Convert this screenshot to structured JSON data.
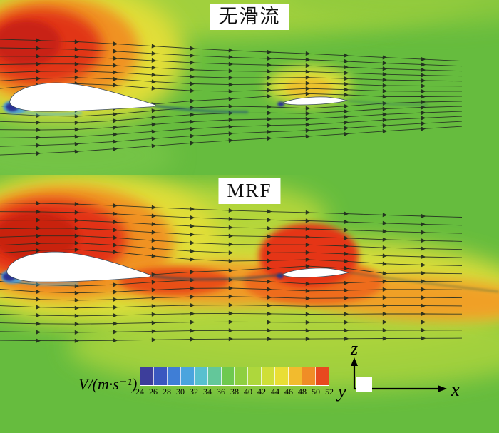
{
  "figure": {
    "panels": [
      {
        "label": "无滑流"
      },
      {
        "label": "MRF"
      }
    ],
    "colorbar": {
      "label": "V/(m·s⁻¹)"
    },
    "axes": {
      "x_label": "x",
      "y_label": "y",
      "z_label": "z"
    }
  },
  "chart_data": {
    "type": "heatmap",
    "title": "",
    "variable": "V/(m·s⁻¹)",
    "panels": [
      {
        "title": "无滑流",
        "description": "Velocity-magnitude contours with streamlines around tandem airfoil sections without propeller slipstream: high-speed region (~46–52 m/s) above the front airfoil leading edge, small accelerated patch (~40–44 m/s) above the rear airfoil, freestream ~36–38 m/s, low-speed stagnation spots (~24–28 m/s) at both leading edges."
      },
      {
        "title": "MRF",
        "description": "Velocity-magnitude contours with streamlines using the Multiple Reference Frame model: enlarged high-speed region (~48–52 m/s) above the front airfoil and an accelerated slipstream wake band (~42–48 m/s) extending downstream over the rear airfoil."
      }
    ],
    "colorbar": {
      "label": "V/(m·s⁻¹)",
      "min": 24,
      "max": 52,
      "step": 2,
      "ticks": [
        24,
        26,
        28,
        30,
        32,
        34,
        36,
        38,
        40,
        42,
        44,
        46,
        48,
        50,
        52
      ],
      "colors": [
        "#3d3e9b",
        "#3a57c0",
        "#3f7ed6",
        "#4aa4de",
        "#58c0cf",
        "#63c79a",
        "#6ec94f",
        "#8ecf40",
        "#aed73c",
        "#cfdf38",
        "#e9de34",
        "#f2bb2e",
        "#f08d26",
        "#e8491f"
      ]
    },
    "axis_triad": {
      "up": "z",
      "right": "x",
      "out_of_plane": "y"
    },
    "legend_position": "bottom"
  }
}
